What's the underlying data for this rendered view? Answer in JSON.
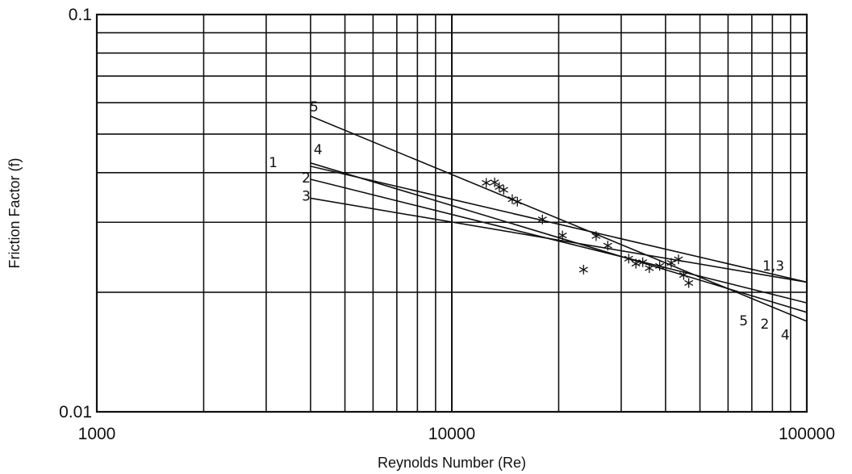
{
  "chart_data": {
    "type": "line",
    "title": "",
    "xlabel": "Reynolds Number (Re)",
    "ylabel": "Friction Factor (f)",
    "xscale": "log",
    "yscale": "log",
    "xlim": [
      1000,
      100000
    ],
    "ylim": [
      0.01,
      0.1
    ],
    "x_ticks": [
      {
        "value": 1000,
        "label": "1000"
      },
      {
        "value": 10000,
        "label": "10000"
      },
      {
        "value": 100000,
        "label": "100000"
      }
    ],
    "y_ticks": [
      {
        "value": 0.1,
        "label": "0.1"
      },
      {
        "value": 0.01,
        "label": "0.01"
      }
    ],
    "grid": true,
    "series": [
      {
        "name": "1",
        "x": [
          4000,
          100000
        ],
        "y": [
          0.0415,
          0.0212
        ]
      },
      {
        "name": "2",
        "x": [
          4000,
          100000
        ],
        "y": [
          0.0385,
          0.0188
        ]
      },
      {
        "name": "3",
        "x": [
          4000,
          100000
        ],
        "y": [
          0.0345,
          0.0212
        ]
      },
      {
        "name": "4",
        "x": [
          4000,
          100000
        ],
        "y": [
          0.0423,
          0.0178
        ]
      },
      {
        "name": "5",
        "x": [
          4000,
          100000
        ],
        "y": [
          0.0555,
          0.0169
        ]
      }
    ],
    "points": [
      {
        "x": 12500,
        "y": 0.0377
      },
      {
        "x": 13200,
        "y": 0.0378
      },
      {
        "x": 13600,
        "y": 0.0368
      },
      {
        "x": 14000,
        "y": 0.0362
      },
      {
        "x": 14800,
        "y": 0.0343
      },
      {
        "x": 15300,
        "y": 0.0338
      },
      {
        "x": 18000,
        "y": 0.0305
      },
      {
        "x": 20500,
        "y": 0.0278
      },
      {
        "x": 23500,
        "y": 0.0228
      },
      {
        "x": 25500,
        "y": 0.0277
      },
      {
        "x": 27500,
        "y": 0.0262
      },
      {
        "x": 31500,
        "y": 0.0243
      },
      {
        "x": 33000,
        "y": 0.0236
      },
      {
        "x": 34500,
        "y": 0.0238
      },
      {
        "x": 36000,
        "y": 0.023
      },
      {
        "x": 38500,
        "y": 0.0233
      },
      {
        "x": 41500,
        "y": 0.0237
      },
      {
        "x": 43500,
        "y": 0.0242
      },
      {
        "x": 45000,
        "y": 0.0221
      },
      {
        "x": 46500,
        "y": 0.0211
      }
    ],
    "curve_labels": [
      {
        "text": "5",
        "at_x": 3980,
        "at_y": 0.057
      },
      {
        "text": "4",
        "at_x": 4080,
        "at_y": 0.0445
      },
      {
        "text": "1",
        "at_x": 3050,
        "at_y": 0.0413
      },
      {
        "text": "2",
        "at_x": 3780,
        "at_y": 0.0378
      },
      {
        "text": "3",
        "at_x": 3780,
        "at_y": 0.034
      },
      {
        "text": "1,3",
        "at_x": 75000,
        "at_y": 0.0227
      },
      {
        "text": "5",
        "at_x": 64500,
        "at_y": 0.0165
      },
      {
        "text": "2",
        "at_x": 74000,
        "at_y": 0.0162
      },
      {
        "text": "4",
        "at_x": 84500,
        "at_y": 0.0152
      }
    ]
  }
}
